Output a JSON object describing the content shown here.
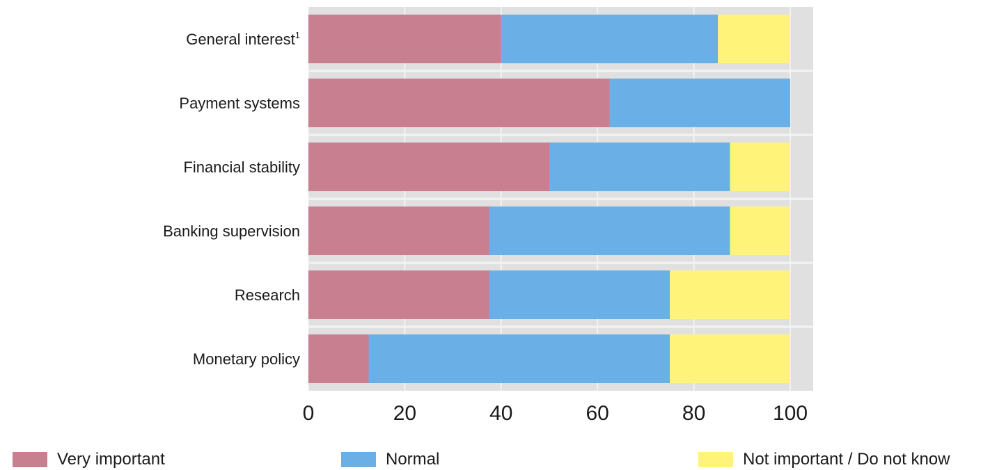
{
  "chart_data": {
    "type": "bar",
    "orientation": "horizontal",
    "stacked": true,
    "categories": [
      "General interest",
      "Payment systems",
      "Financial stability",
      "Banking supervision",
      "Research",
      "Monetary policy"
    ],
    "category_superscripts": [
      "1",
      "",
      "",
      "",
      "",
      ""
    ],
    "series": [
      {
        "name": "Very important",
        "color": "#c88090",
        "values": [
          40,
          62.5,
          50,
          37.5,
          37.5,
          12.5
        ]
      },
      {
        "name": "Normal",
        "color": "#6ab0e6",
        "values": [
          45,
          37.5,
          37.5,
          50,
          37.5,
          62.5
        ]
      },
      {
        "name": "Not important / Do not know",
        "color": "#fff37a",
        "values": [
          15,
          0,
          12.5,
          12.5,
          25,
          25
        ]
      }
    ],
    "x_ticks": [
      0,
      20,
      40,
      60,
      80,
      100
    ],
    "xlim": [
      0,
      100
    ],
    "grid": true,
    "legend_position": "bottom"
  }
}
